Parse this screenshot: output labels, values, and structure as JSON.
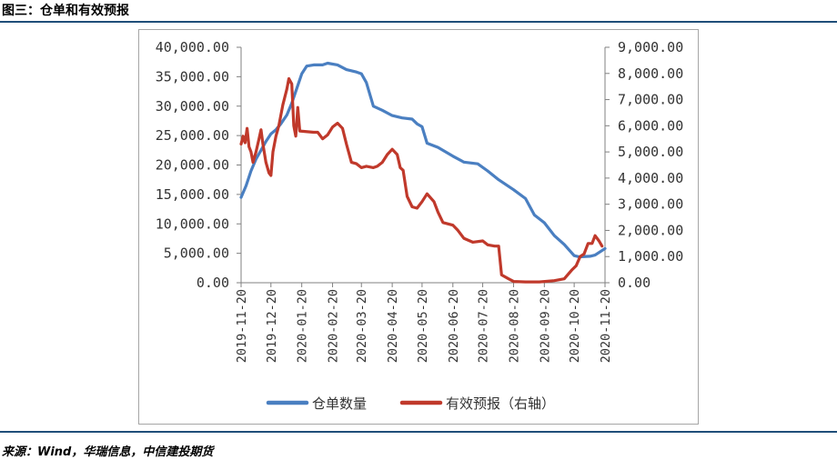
{
  "header": {
    "title": "图三：仓单和有效预报"
  },
  "footer": {
    "source": "来源：Wind，华瑞信息，中信建投期货"
  },
  "colors": {
    "rule": "#1f4e79",
    "series_left": "#4a7fc1",
    "series_right": "#c0392b"
  },
  "chart_data": {
    "type": "line",
    "title": "",
    "x_ticks": [
      "2019-11-20",
      "2019-12-20",
      "2020-01-20",
      "2020-02-20",
      "2020-03-20",
      "2020-04-20",
      "2020-05-20",
      "2020-06-20",
      "2020-07-20",
      "2020-08-20",
      "2020-09-20",
      "2020-10-20",
      "2020-11-20"
    ],
    "y_left": {
      "range": [
        0,
        40000
      ],
      "ticks": [
        "0.00",
        "5,000.00",
        "10,000.00",
        "15,000.00",
        "20,000.00",
        "25,000.00",
        "30,000.00",
        "35,000.00",
        "40,000.00"
      ]
    },
    "y_right": {
      "range": [
        0,
        9000
      ],
      "ticks": [
        "0.00",
        "1,000.00",
        "2,000.00",
        "3,000.00",
        "4,000.00",
        "5,000.00",
        "6,000.00",
        "7,000.00",
        "8,000.00",
        "9,000.00"
      ]
    },
    "legend": {
      "position": "bottom"
    },
    "series": [
      {
        "name": "仓单数量",
        "axis": "left",
        "points": [
          [
            "2019-11-20",
            14500
          ],
          [
            "2019-11-25",
            16500
          ],
          [
            "2019-11-30",
            19000
          ],
          [
            "2019-12-05",
            21000
          ],
          [
            "2019-12-10",
            22500
          ],
          [
            "2019-12-15",
            24000
          ],
          [
            "2019-12-20",
            25300
          ],
          [
            "2019-12-25",
            26000
          ],
          [
            "2019-12-30",
            27000
          ],
          [
            "2020-01-05",
            28500
          ],
          [
            "2020-01-10",
            30500
          ],
          [
            "2020-01-15",
            33000
          ],
          [
            "2020-01-20",
            35500
          ],
          [
            "2020-01-25",
            36800
          ],
          [
            "2020-02-01",
            37000
          ],
          [
            "2020-02-10",
            37000
          ],
          [
            "2020-02-15",
            37300
          ],
          [
            "2020-02-25",
            37000
          ],
          [
            "2020-03-05",
            36200
          ],
          [
            "2020-03-15",
            35800
          ],
          [
            "2020-03-20",
            35500
          ],
          [
            "2020-03-25",
            34000
          ],
          [
            "2020-04-01",
            30000
          ],
          [
            "2020-04-10",
            29300
          ],
          [
            "2020-04-20",
            28400
          ],
          [
            "2020-04-30",
            28000
          ],
          [
            "2020-05-10",
            27800
          ],
          [
            "2020-05-15",
            27000
          ],
          [
            "2020-05-20",
            26500
          ],
          [
            "2020-05-25",
            23700
          ],
          [
            "2020-06-05",
            23000
          ],
          [
            "2020-06-20",
            21500
          ],
          [
            "2020-07-01",
            20500
          ],
          [
            "2020-07-15",
            20200
          ],
          [
            "2020-07-25",
            19000
          ],
          [
            "2020-08-05",
            17500
          ],
          [
            "2020-08-20",
            15800
          ],
          [
            "2020-09-01",
            14300
          ],
          [
            "2020-09-10",
            11500
          ],
          [
            "2020-09-20",
            10200
          ],
          [
            "2020-09-30",
            8000
          ],
          [
            "2020-10-10",
            6500
          ],
          [
            "2020-10-20",
            4600
          ],
          [
            "2020-10-25",
            4400
          ],
          [
            "2020-11-05",
            4500
          ],
          [
            "2020-11-10",
            4700
          ],
          [
            "2020-11-20",
            5800
          ]
        ]
      },
      {
        "name": "有效预报（右轴）",
        "axis": "right",
        "points": [
          [
            "2019-11-20",
            5300
          ],
          [
            "2019-11-22",
            5600
          ],
          [
            "2019-11-24",
            5350
          ],
          [
            "2019-11-26",
            5900
          ],
          [
            "2019-11-28",
            5200
          ],
          [
            "2019-11-30",
            5000
          ],
          [
            "2019-12-02",
            4600
          ],
          [
            "2019-12-05",
            5000
          ],
          [
            "2019-12-08",
            5500
          ],
          [
            "2019-12-10",
            5850
          ],
          [
            "2019-12-12",
            5300
          ],
          [
            "2019-12-15",
            4600
          ],
          [
            "2019-12-18",
            4200
          ],
          [
            "2019-12-20",
            4100
          ],
          [
            "2019-12-22",
            5000
          ],
          [
            "2019-12-25",
            5600
          ],
          [
            "2019-12-28",
            6000
          ],
          [
            "2020-01-01",
            6800
          ],
          [
            "2020-01-05",
            7400
          ],
          [
            "2020-01-07",
            7800
          ],
          [
            "2020-01-10",
            7600
          ],
          [
            "2020-01-12",
            6000
          ],
          [
            "2020-01-14",
            5600
          ],
          [
            "2020-01-16",
            6700
          ],
          [
            "2020-01-18",
            5800
          ],
          [
            "2020-02-01",
            5750
          ],
          [
            "2020-02-05",
            5750
          ],
          [
            "2020-02-10",
            5500
          ],
          [
            "2020-02-15",
            5650
          ],
          [
            "2020-02-20",
            5950
          ],
          [
            "2020-02-25",
            6100
          ],
          [
            "2020-03-01",
            5900
          ],
          [
            "2020-03-05",
            5300
          ],
          [
            "2020-03-10",
            4600
          ],
          [
            "2020-03-15",
            4550
          ],
          [
            "2020-03-20",
            4400
          ],
          [
            "2020-03-25",
            4450
          ],
          [
            "2020-04-01",
            4400
          ],
          [
            "2020-04-05",
            4450
          ],
          [
            "2020-04-10",
            4600
          ],
          [
            "2020-04-15",
            4900
          ],
          [
            "2020-04-20",
            5100
          ],
          [
            "2020-04-25",
            4900
          ],
          [
            "2020-04-28",
            4400
          ],
          [
            "2020-05-01",
            4300
          ],
          [
            "2020-05-05",
            3300
          ],
          [
            "2020-05-10",
            2900
          ],
          [
            "2020-05-15",
            2850
          ],
          [
            "2020-05-20",
            3100
          ],
          [
            "2020-05-25",
            3400
          ],
          [
            "2020-06-01",
            3100
          ],
          [
            "2020-06-05",
            2700
          ],
          [
            "2020-06-10",
            2300
          ],
          [
            "2020-06-20",
            2200
          ],
          [
            "2020-06-25",
            2000
          ],
          [
            "2020-07-01",
            1700
          ],
          [
            "2020-07-10",
            1550
          ],
          [
            "2020-07-20",
            1600
          ],
          [
            "2020-07-25",
            1450
          ],
          [
            "2020-08-01",
            1400
          ],
          [
            "2020-08-05",
            1400
          ],
          [
            "2020-08-08",
            300
          ],
          [
            "2020-08-15",
            150
          ],
          [
            "2020-08-20",
            50
          ],
          [
            "2020-09-01",
            30
          ],
          [
            "2020-09-15",
            30
          ],
          [
            "2020-09-30",
            80
          ],
          [
            "2020-10-10",
            150
          ],
          [
            "2020-10-18",
            500
          ],
          [
            "2020-10-22",
            650
          ],
          [
            "2020-10-26",
            1000
          ],
          [
            "2020-10-30",
            1100
          ],
          [
            "2020-11-03",
            1500
          ],
          [
            "2020-11-07",
            1500
          ],
          [
            "2020-11-10",
            1800
          ],
          [
            "2020-11-14",
            1600
          ],
          [
            "2020-11-17",
            1400
          ]
        ]
      }
    ]
  }
}
